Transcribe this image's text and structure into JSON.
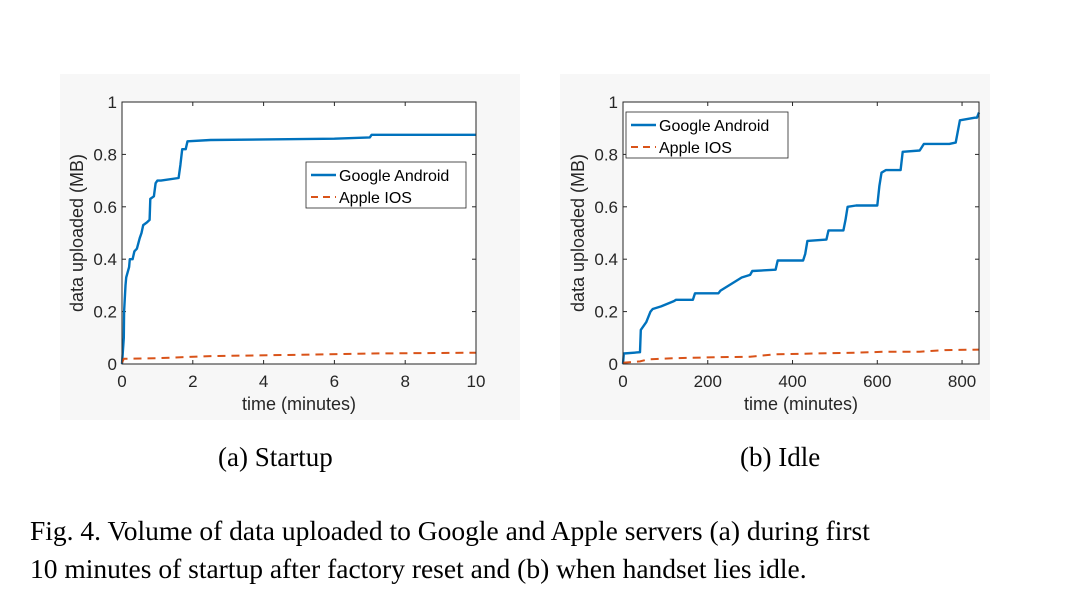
{
  "chart_data": [
    {
      "type": "line",
      "subcaption": "(a)  Startup",
      "xlabel": "time (minutes)",
      "ylabel": "data uploaded (MB)",
      "xlim": [
        0,
        10
      ],
      "ylim": [
        0,
        1
      ],
      "xticks": [
        "0",
        "2",
        "4",
        "6",
        "8",
        "10"
      ],
      "yticks": [
        "0",
        "0.2",
        "0.4",
        "0.6",
        "0.8",
        "1"
      ],
      "legend_position": "center-right",
      "series": [
        {
          "name": "Google Android",
          "color": "#0072bd",
          "style": "solid",
          "x": [
            0,
            0.05,
            0.06,
            0.1,
            0.12,
            0.2,
            0.22,
            0.3,
            0.35,
            0.42,
            0.5,
            0.55,
            0.6,
            0.7,
            0.78,
            0.8,
            0.9,
            0.95,
            1.0,
            1.1,
            1.6,
            1.65,
            1.7,
            1.8,
            1.85,
            2.5,
            6.0,
            7.0,
            7.05,
            10.0
          ],
          "y": [
            0.0,
            0.1,
            0.2,
            0.3,
            0.33,
            0.37,
            0.4,
            0.4,
            0.43,
            0.44,
            0.48,
            0.5,
            0.53,
            0.54,
            0.55,
            0.63,
            0.64,
            0.69,
            0.7,
            0.7,
            0.71,
            0.76,
            0.82,
            0.82,
            0.85,
            0.855,
            0.86,
            0.865,
            0.875,
            0.875
          ]
        },
        {
          "name": "Apple IOS",
          "color": "#d95319",
          "style": "dashed",
          "x": [
            0,
            0.05,
            1.0,
            2.5,
            5.0,
            7.0,
            10.0
          ],
          "y": [
            0.005,
            0.02,
            0.022,
            0.03,
            0.035,
            0.04,
            0.043
          ]
        }
      ]
    },
    {
      "type": "line",
      "subcaption": "(b)  Idle",
      "xlabel": "time (minutes)",
      "ylabel": "data uploaded (MB)",
      "xlim": [
        0,
        840
      ],
      "ylim": [
        0,
        1
      ],
      "xticks": [
        "0",
        "200",
        "400",
        "600",
        "800"
      ],
      "xtick_values": [
        0,
        200,
        400,
        600,
        800
      ],
      "yticks": [
        "0",
        "0.2",
        "0.4",
        "0.6",
        "0.8",
        "1"
      ],
      "legend_position": "top-left",
      "series": [
        {
          "name": "Google Android",
          "color": "#0072bd",
          "style": "solid",
          "x": [
            0,
            2,
            40,
            42,
            55,
            65,
            70,
            90,
            120,
            125,
            165,
            170,
            225,
            230,
            280,
            300,
            305,
            360,
            365,
            425,
            430,
            435,
            480,
            485,
            520,
            525,
            530,
            550,
            600,
            605,
            610,
            620,
            655,
            660,
            700,
            710,
            770,
            785,
            795,
            830,
            835,
            840
          ],
          "y": [
            0.0,
            0.04,
            0.045,
            0.13,
            0.16,
            0.2,
            0.21,
            0.22,
            0.24,
            0.245,
            0.245,
            0.27,
            0.27,
            0.28,
            0.33,
            0.34,
            0.355,
            0.36,
            0.395,
            0.395,
            0.42,
            0.47,
            0.475,
            0.51,
            0.51,
            0.55,
            0.6,
            0.605,
            0.605,
            0.68,
            0.73,
            0.74,
            0.74,
            0.81,
            0.815,
            0.84,
            0.84,
            0.845,
            0.93,
            0.94,
            0.94,
            0.96
          ]
        },
        {
          "name": "Apple IOS",
          "color": "#d95319",
          "style": "dashed",
          "x": [
            0,
            40,
            60,
            120,
            200,
            300,
            360,
            450,
            550,
            620,
            700,
            760,
            840
          ],
          "y": [
            0.005,
            0.01,
            0.018,
            0.022,
            0.025,
            0.028,
            0.037,
            0.04,
            0.043,
            0.047,
            0.047,
            0.053,
            0.055
          ]
        }
      ]
    }
  ],
  "caption": {
    "line1": "Fig. 4.  Volume of data uploaded to Google and Apple servers (a) during first",
    "line2": "10 minutes of startup after factory reset and (b) when handset lies idle."
  }
}
